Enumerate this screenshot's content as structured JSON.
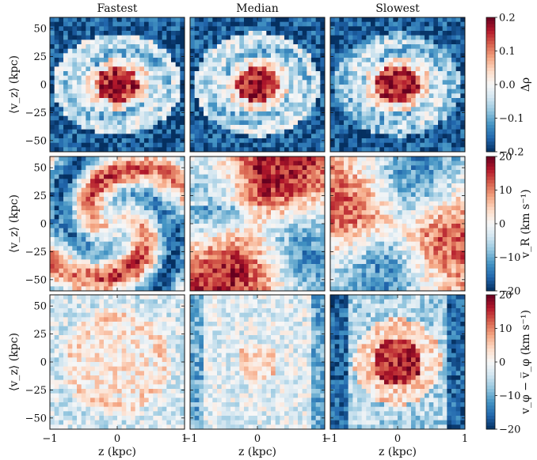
{
  "chart_data": {
    "type": "heatmap",
    "columns": [
      "Fastest",
      "Median",
      "Slowest"
    ],
    "xlabel": "z (kpc)",
    "ylabel": "⟨v_z⟩ (kpc)",
    "xlim": [
      -1,
      1
    ],
    "ylim": [
      -60,
      60
    ],
    "xticks": [
      {
        "value": -1,
        "label": "−1"
      },
      {
        "value": 0,
        "label": "0"
      },
      {
        "value": 1,
        "label": "1"
      }
    ],
    "yticks": [
      {
        "value": 50,
        "label": "50"
      },
      {
        "value": 25,
        "label": "25"
      },
      {
        "value": 0,
        "label": "0"
      },
      {
        "value": -25,
        "label": "−25"
      },
      {
        "value": -50,
        "label": "−50"
      }
    ],
    "colormap": "RdBu_r",
    "colormap_stops": [
      "#053061",
      "#2166ac",
      "#4393c3",
      "#92c5de",
      "#d1e5f0",
      "#f7f7f7",
      "#fddbc7",
      "#f4a582",
      "#d6604d",
      "#b2182b",
      "#67001f"
    ],
    "rows": [
      {
        "quantity": "Δρ",
        "colorbar_label": "Δρ",
        "clim": [
          -0.2,
          0.2
        ],
        "colorbar_ticks": [
          {
            "value": 0.2,
            "label": "0.2"
          },
          {
            "value": 0.1,
            "label": "0.1"
          },
          {
            "value": 0.0,
            "label": "0.0"
          },
          {
            "value": -0.1,
            "label": "−0.1"
          },
          {
            "value": -0.2,
            "label": "−0.2"
          }
        ]
      },
      {
        "quantity": "v_R",
        "colorbar_label": "v_R (km s⁻¹)",
        "clim": [
          -20,
          20
        ],
        "colorbar_ticks": [
          {
            "value": 20,
            "label": "20"
          },
          {
            "value": 10,
            "label": "10"
          },
          {
            "value": 0,
            "label": "0"
          },
          {
            "value": -10,
            "label": "−10"
          },
          {
            "value": -20,
            "label": "−20"
          }
        ]
      },
      {
        "quantity": "v_φ − mean v_φ",
        "colorbar_label": "v_φ − v̅_φ (km s⁻¹)",
        "clim": [
          -20,
          20
        ],
        "colorbar_ticks": [
          {
            "value": 20,
            "label": "20"
          },
          {
            "value": 10,
            "label": "10"
          },
          {
            "value": 0,
            "label": "0"
          },
          {
            "value": -10,
            "label": "−10"
          },
          {
            "value": -20,
            "label": "−20"
          }
        ]
      }
    ]
  }
}
